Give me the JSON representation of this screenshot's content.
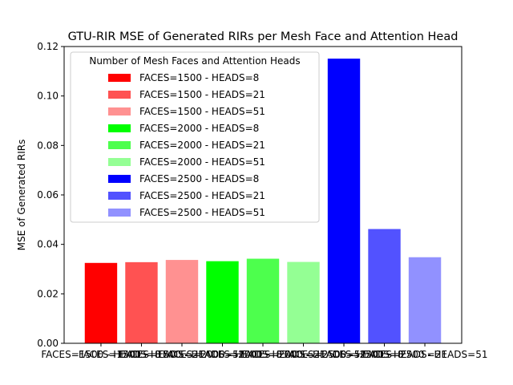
{
  "chart_data": {
    "type": "bar",
    "title": "GTU-RIR MSE of Generated RIRs per Mesh Face and Attention Head",
    "xlabel": "",
    "ylabel": "MSE of Generated RIRs",
    "ylim": [
      0,
      0.12
    ],
    "yticks": [
      "0.00",
      "0.02",
      "0.04",
      "0.06",
      "0.08",
      "0.10",
      "0.12"
    ],
    "grid": false,
    "legend": {
      "title": "Number of Mesh Faces and Attention Heads",
      "placement": "top-left"
    },
    "categories": [
      "FACES=1500 - HEADS=8",
      "FACES=1500 - HEADS=21",
      "FACES=1500 - HEADS=51",
      "FACES=2000 - HEADS=8",
      "FACES=2000 - HEADS=21",
      "FACES=2000 - HEADS=51",
      "FACES=2500 - HEADS=8",
      "FACES=2500 - HEADS=21",
      "FACES=2500 - HEADS=51"
    ],
    "values": [
      0.0325,
      0.0328,
      0.0337,
      0.0332,
      0.0342,
      0.0329,
      0.1151,
      0.0462,
      0.0348
    ],
    "colors": [
      "#ff0000",
      "#ff5252",
      "#ff9191",
      "#00ff00",
      "#4dff4d",
      "#94ff94",
      "#0000ff",
      "#5252ff",
      "#9191ff"
    ]
  }
}
